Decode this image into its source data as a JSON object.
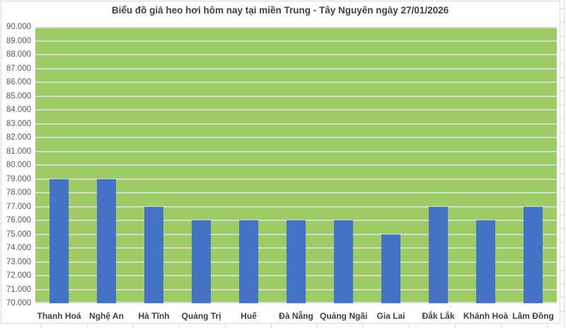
{
  "chart_data": {
    "type": "bar",
    "title": "Biểu đồ giá heo hơi hôm nay tại miền Trung - Tây Nguyên ngày 27/01/2026",
    "categories": [
      "Thanh Hoá",
      "Nghệ An",
      "Hà Tĩnh",
      "Quảng Trị",
      "Huế",
      "Đà Nẵng",
      "Quảng Ngãi",
      "Gia Lai",
      "Đắk Lắk",
      "Khánh Hoà",
      "Lâm Đồng"
    ],
    "values": [
      79000,
      79000,
      77000,
      76000,
      76000,
      76000,
      76000,
      75000,
      77000,
      76000,
      77000
    ],
    "ylim": [
      70000,
      90000
    ],
    "ytick_step": 1000,
    "ytick_labels_top_to_bottom": [
      "90.000",
      "89.000",
      "88.000",
      "87.000",
      "86.000",
      "85.000",
      "84.000",
      "83.000",
      "82.000",
      "81.000",
      "80.000",
      "79.000",
      "78.000",
      "77.000",
      "76.000",
      "75.000",
      "74.000",
      "73.000",
      "72.000",
      "71.000",
      "70.000"
    ],
    "xlabel": "",
    "ylabel": "",
    "grid": true,
    "legend": false,
    "colors": {
      "bar": "#4472C4",
      "plot_background": "#9DCC64",
      "gridline": "#D7DCD2",
      "title_text": "#404040",
      "category_text": "#404040",
      "tick_text": "#595959",
      "chart_border": "#D9D9D9",
      "worksheet_gridline": "#D9D9D9",
      "page_background": "#FFFFFF"
    }
  }
}
